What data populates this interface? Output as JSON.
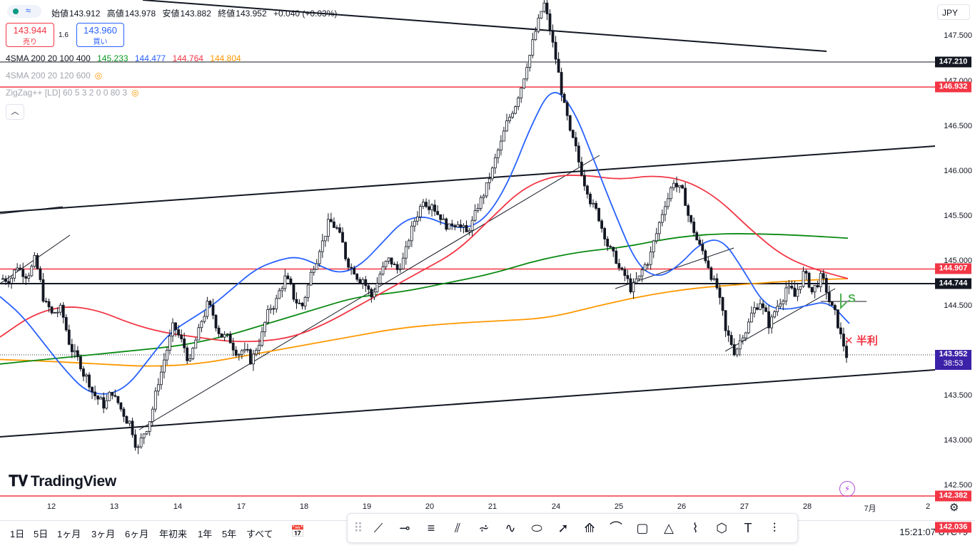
{
  "header": {
    "ohlc": [
      {
        "label": "始値",
        "value": "143.912"
      },
      {
        "label": "高値",
        "value": "143.978"
      },
      {
        "label": "安値",
        "value": "143.882"
      },
      {
        "label": "終値",
        "value": "143.952"
      }
    ],
    "change": "+0.040 (+0.03%)",
    "sell": {
      "price": "143.944",
      "label": "売り"
    },
    "buy": {
      "price": "143.960",
      "label": "買い"
    },
    "spread": "1.6",
    "currency": "JPY",
    "collapse_icon": "chevron-up-icon"
  },
  "indicators": [
    {
      "name": "4SMA 200 20 100 400",
      "values": [
        {
          "v": "145.233",
          "color": "#089922"
        },
        {
          "v": "144.477",
          "color": "#2962ff"
        },
        {
          "v": "144.764",
          "color": "#f23645"
        },
        {
          "v": "144.804",
          "color": "#ff9800"
        }
      ]
    },
    {
      "name": "4SMA 200 20 120 600",
      "hidden": true,
      "values": []
    },
    {
      "name": "ZigZag++ [LD] 60 5 3 2 0 0 80 3",
      "hidden": true,
      "values": []
    }
  ],
  "chart_data": {
    "type": "candlestick",
    "y_axis": {
      "range": [
        142.35,
        147.9
      ],
      "ticks": [
        "147.500",
        "147.000",
        "146.500",
        "146.000",
        "145.500",
        "145.000",
        "144.500",
        "143.500",
        "143.000",
        "142.500"
      ]
    },
    "x_axis": {
      "ticks": [
        "12",
        "13",
        "14",
        "17",
        "18",
        "19",
        "20",
        "21",
        "24",
        "25",
        "26",
        "27",
        "28",
        "7月",
        "2"
      ]
    },
    "price_tags": [
      {
        "value": "147.210",
        "color": "#131722"
      },
      {
        "value": "146.932",
        "color": "#f23645"
      },
      {
        "value": "144.907",
        "color": "#f23645"
      },
      {
        "value": "144.744",
        "color": "#131722"
      },
      {
        "value": "143.952",
        "sub": "38:53",
        "color": "#3c22a8"
      },
      {
        "value": "142.382",
        "color": "#f23645"
      },
      {
        "value": "142.036",
        "color": "#f23645"
      }
    ],
    "close_path": [
      144.8,
      144.95,
      144.85,
      145.0,
      144.6,
      144.4,
      144.45,
      144.1,
      143.9,
      143.7,
      143.5,
      143.4,
      143.55,
      143.35,
      143.2,
      142.9,
      143.15,
      143.5,
      143.9,
      144.25,
      144.1,
      143.85,
      144.2,
      144.5,
      144.3,
      144.15,
      144.05,
      144.0,
      143.9,
      144.1,
      144.4,
      144.55,
      144.8,
      144.6,
      144.5,
      144.85,
      145.15,
      145.4,
      145.35,
      145.05,
      144.9,
      144.8,
      144.6,
      144.85,
      145.0,
      144.9,
      145.1,
      145.45,
      145.7,
      145.65,
      145.5,
      145.35,
      145.45,
      145.3,
      145.5,
      145.75,
      146.0,
      146.3,
      146.6,
      146.85,
      147.2,
      147.55,
      147.85,
      147.4,
      146.9,
      146.4,
      146.1,
      145.8,
      145.55,
      145.3,
      145.05,
      144.85,
      144.7,
      144.8,
      145.0,
      145.3,
      145.65,
      145.9,
      145.75,
      145.4,
      145.15,
      144.95,
      144.7,
      144.2,
      144.0,
      144.2,
      144.4,
      144.55,
      144.3,
      144.5,
      144.7,
      144.6,
      144.85,
      144.65,
      144.8,
      144.55,
      144.3,
      143.95
    ],
    "ma_blue_path": [
      144.6,
      144.4,
      144.1,
      143.8,
      143.55,
      143.5,
      143.6,
      143.9,
      144.2,
      144.35,
      144.5,
      144.7,
      144.9,
      145.0,
      145.05,
      144.95,
      144.85,
      144.95,
      145.2,
      145.45,
      145.5,
      145.4,
      145.35,
      145.5,
      145.9,
      146.5,
      146.95,
      146.7,
      146.1,
      145.5,
      144.95,
      144.8,
      144.95,
      145.2,
      145.25,
      144.9,
      144.5,
      144.45,
      144.5,
      144.55,
      144.3
    ],
    "ma_red_path": [
      144.15,
      144.4,
      144.5,
      144.45,
      144.3,
      144.2,
      144.15,
      144.1,
      144.1,
      144.15,
      144.3,
      144.5,
      144.7,
      144.9,
      145.1,
      145.45,
      145.8,
      145.95,
      145.95,
      145.9,
      145.95,
      145.9,
      145.7,
      145.35,
      145.05,
      144.9,
      144.8
    ],
    "ma_green_path": [
      143.85,
      143.9,
      143.95,
      144.0,
      144.05,
      144.15,
      144.3,
      144.45,
      144.6,
      144.65,
      144.75,
      144.85,
      145.0,
      145.1,
      145.15,
      145.25,
      145.3,
      145.3,
      145.28,
      145.25
    ],
    "ma_orange_path": [
      143.9,
      143.88,
      143.85,
      143.82,
      143.85,
      143.95,
      144.05,
      144.15,
      144.25,
      144.3,
      144.33,
      144.36,
      144.5,
      144.62,
      144.7,
      144.74,
      144.78,
      144.8
    ]
  },
  "annotations": {
    "s_label": "S",
    "half_profit": "半利",
    "cross": "✕"
  },
  "time_axis": {
    "settings_icon": "gear-icon"
  },
  "bottom_bar": {
    "ranges": [
      "1日",
      "5日",
      "1ヶ月",
      "3ヶ月",
      "6ヶ月",
      "年初来",
      "1年",
      "5年",
      "すべて"
    ],
    "clock": "15:21:07 UTC+9"
  },
  "branding": {
    "logo_text": "TradingView"
  },
  "toolbar_icons": [
    "drag-handle-icon",
    "trend-line-icon",
    "horizontal-ray-icon",
    "parallel-channel-icon",
    "fib-icon",
    "pitchfork-icon",
    "brush-icon",
    "ellipse-icon",
    "arrow-icon",
    "gann-icon",
    "curve-icon",
    "rectangle-icon",
    "triangle-icon",
    "path-icon",
    "pattern-icon",
    "text-icon",
    "vertical-line-icon"
  ]
}
